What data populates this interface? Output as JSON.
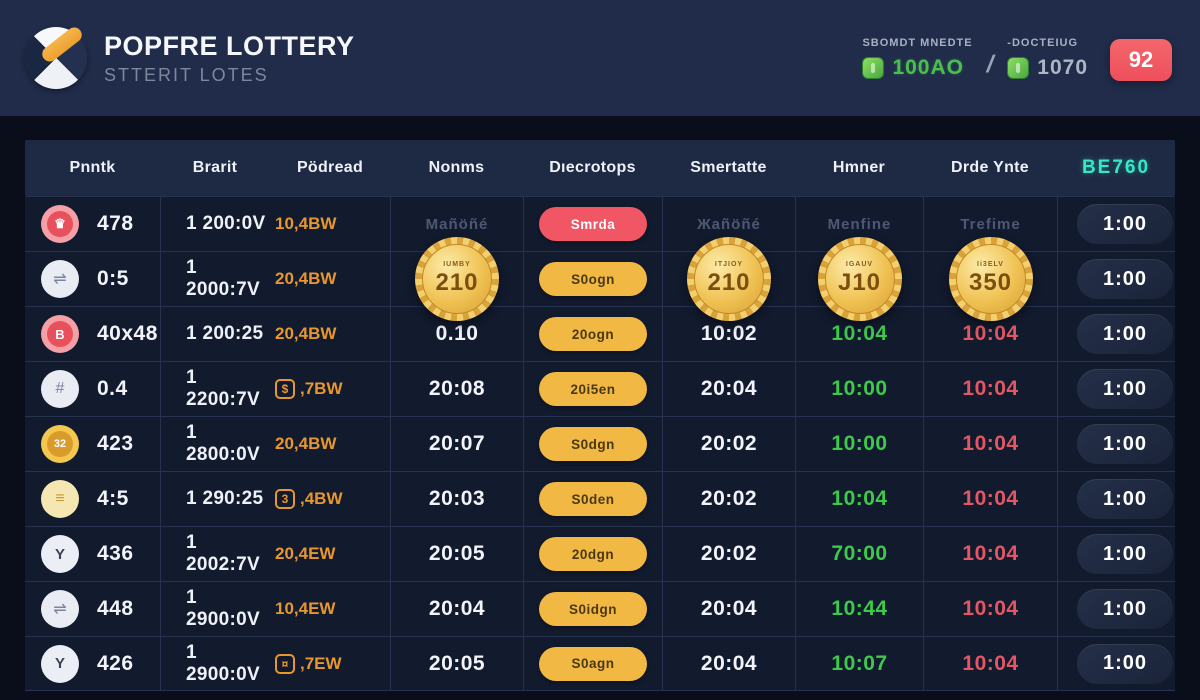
{
  "header": {
    "title": "POPFRE LOTTERY",
    "subtitle": "STTERIT LOTES",
    "stat1_label": "SBOMDT MNEDTE",
    "stat1_value": "100AO",
    "separator": "/",
    "stat2_label": "-DOCTEIUG",
    "stat2_value": "1070",
    "badge": "92"
  },
  "table": {
    "columns": [
      "Pnntk",
      "Brarit",
      "Pödread",
      "Nonms",
      "Dıecrotops",
      "Smertatte",
      "Hmner",
      "Drde Ynte"
    ],
    "header_value": "BE760",
    "rows": [
      {
        "rank": "478",
        "icon": {
          "glyph": "♛",
          "style": "red"
        },
        "brand": "1 200:0V",
        "pod": {
          "text": "10,4BW",
          "icon": null
        },
        "norms": {
          "type": "faint",
          "text": "Mañöñé"
        },
        "desc": {
          "type": "pill-red",
          "text": "Smrda"
        },
        "smert": {
          "type": "faint",
          "text": "Жañöñé"
        },
        "honer": {
          "type": "faint",
          "text": "Menfine"
        },
        "date": {
          "type": "faint",
          "text": "Trefime"
        },
        "timer": "1:00"
      },
      {
        "rank": "0:5",
        "icon": {
          "glyph": "⇌",
          "style": "grey"
        },
        "brand": "1 2000:7V",
        "pod": {
          "text": "20,4BW",
          "icon": null
        },
        "norms": {
          "type": "badge",
          "text": "210",
          "caption": "IUMBY"
        },
        "desc": {
          "type": "pill-yellow",
          "text": "S0ogn"
        },
        "smert": {
          "type": "badge",
          "text": "210",
          "caption": "ITJIOY"
        },
        "honer": {
          "type": "badge",
          "text": "J10",
          "caption": "IGAUV"
        },
        "date": {
          "type": "badge",
          "text": "350",
          "caption": "Ii3ELV"
        },
        "timer": "1:00"
      },
      {
        "rank": "40x48",
        "icon": {
          "glyph": "B",
          "style": "red"
        },
        "brand": "1 200:25",
        "pod": {
          "text": "20,4BW",
          "icon": null
        },
        "norms": {
          "type": "time",
          "text": "0.10"
        },
        "desc": {
          "type": "pill-yellow",
          "text": "20ogn"
        },
        "smert": {
          "type": "time",
          "text": "10:02"
        },
        "honer": {
          "type": "green",
          "text": "10:04"
        },
        "date": {
          "type": "red",
          "text": "10:04"
        },
        "timer": "1:00"
      },
      {
        "rank": "0.4",
        "icon": {
          "glyph": "#",
          "style": "grey"
        },
        "brand": "1 2200:7V",
        "pod": {
          "text": ",7BW",
          "icon": "$"
        },
        "norms": {
          "type": "time",
          "text": "20:08"
        },
        "desc": {
          "type": "pill-yellow",
          "text": "20i5en"
        },
        "smert": {
          "type": "time",
          "text": "20:04"
        },
        "honer": {
          "type": "green",
          "text": "10:00"
        },
        "date": {
          "type": "red",
          "text": "10:04"
        },
        "timer": "1:00"
      },
      {
        "rank": "423",
        "icon": {
          "glyph": "32",
          "style": "gold"
        },
        "brand": "1 2800:0V",
        "pod": {
          "text": "20,4BW",
          "icon": null
        },
        "norms": {
          "type": "time",
          "text": "20:07"
        },
        "desc": {
          "type": "pill-yellow",
          "text": "S0dgn"
        },
        "smert": {
          "type": "time",
          "text": "20:02"
        },
        "honer": {
          "type": "green",
          "text": "10:00"
        },
        "date": {
          "type": "red",
          "text": "10:04"
        },
        "timer": "1:00"
      },
      {
        "rank": "4:5",
        "icon": {
          "glyph": "≡",
          "style": "pale"
        },
        "brand": "1 290:25",
        "pod": {
          "text": ",4BW",
          "icon": "3"
        },
        "norms": {
          "type": "time",
          "text": "20:03"
        },
        "desc": {
          "type": "pill-yellow",
          "text": "S0den"
        },
        "smert": {
          "type": "time",
          "text": "20:02"
        },
        "honer": {
          "type": "green",
          "text": "10:04"
        },
        "date": {
          "type": "red",
          "text": "10:04"
        },
        "timer": "1:00"
      },
      {
        "rank": "436",
        "icon": {
          "glyph": "Y",
          "style": "white"
        },
        "brand": "1 2002:7V",
        "pod": {
          "text": "20,4EW",
          "icon": null
        },
        "norms": {
          "type": "time",
          "text": "20:05"
        },
        "desc": {
          "type": "pill-yellow",
          "text": "20dgn"
        },
        "smert": {
          "type": "time",
          "text": "20:02"
        },
        "honer": {
          "type": "green",
          "text": "70:00"
        },
        "date": {
          "type": "red",
          "text": "10:04"
        },
        "timer": "1:00"
      },
      {
        "rank": "448",
        "icon": {
          "glyph": "⇌",
          "style": "grey"
        },
        "brand": "1 2900:0V",
        "pod": {
          "text": "10,4EW",
          "icon": null
        },
        "norms": {
          "type": "time",
          "text": "20:04"
        },
        "desc": {
          "type": "pill-yellow",
          "text": "S0idgn"
        },
        "smert": {
          "type": "time",
          "text": "20:04"
        },
        "honer": {
          "type": "green",
          "text": "10:44"
        },
        "date": {
          "type": "red",
          "text": "10:04"
        },
        "timer": "1:00"
      },
      {
        "rank": "426",
        "icon": {
          "glyph": "Y",
          "style": "white"
        },
        "brand": "1 2900:0V",
        "pod": {
          "text": ",7EW",
          "icon": "¤"
        },
        "norms": {
          "type": "time",
          "text": "20:05"
        },
        "desc": {
          "type": "pill-yellow",
          "text": "S0agn"
        },
        "smert": {
          "type": "time",
          "text": "20:04"
        },
        "honer": {
          "type": "green",
          "text": "10:07"
        },
        "date": {
          "type": "red",
          "text": "10:04"
        },
        "timer": "1:00"
      }
    ]
  }
}
